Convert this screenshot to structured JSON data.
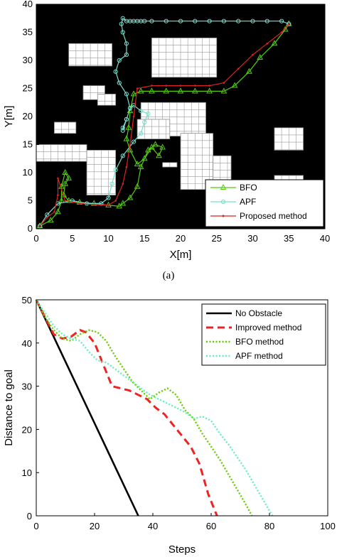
{
  "caption_a": "(a)",
  "chart_data": [
    {
      "type": "scatter",
      "title": "",
      "xlabel": "X[m]",
      "ylabel": "Y[m]",
      "xlim": [
        0,
        40
      ],
      "ylim": [
        0,
        40
      ],
      "xticks": [
        0,
        5,
        10,
        15,
        20,
        25,
        30,
        35,
        40
      ],
      "yticks": [
        0,
        5,
        10,
        15,
        20,
        25,
        30,
        35,
        40
      ],
      "background": "#000000",
      "obstacles": [
        {
          "x0": 4.5,
          "y0": 29,
          "x1": 10.5,
          "y1": 33
        },
        {
          "x0": 16,
          "y0": 27,
          "x1": 25,
          "y1": 34
        },
        {
          "x0": 6.5,
          "y0": 23,
          "x1": 9.5,
          "y1": 25.5
        },
        {
          "x0": 8.5,
          "y0": 22,
          "x1": 11,
          "y1": 24
        },
        {
          "x0": 14.5,
          "y0": 16.5,
          "x1": 23.5,
          "y1": 22.5
        },
        {
          "x0": 2.5,
          "y0": 17,
          "x1": 5.5,
          "y1": 19
        },
        {
          "x0": 0,
          "y0": 12,
          "x1": 7,
          "y1": 15
        },
        {
          "x0": 7,
          "y0": 6,
          "x1": 11,
          "y1": 14
        },
        {
          "x0": 14,
          "y0": 16,
          "x1": 18.5,
          "y1": 19.5
        },
        {
          "x0": 20,
          "y0": 7,
          "x1": 24.5,
          "y1": 17
        },
        {
          "x0": 17.5,
          "y0": 11,
          "x1": 19.5,
          "y1": 11.8
        },
        {
          "x0": 24.5,
          "y0": 7,
          "x1": 27,
          "y1": 13
        },
        {
          "x0": 33,
          "y0": 14,
          "x1": 37,
          "y1": 18
        },
        {
          "x0": 33,
          "y0": 8,
          "x1": 37,
          "y1": 9.5
        }
      ],
      "series": [
        {
          "name": "BFO",
          "color": "#55cc11",
          "marker": "triangle",
          "x": [
            0.5,
            2,
            3,
            3.5,
            3.5,
            4,
            4.5,
            4,
            3.8,
            4.5,
            6,
            8,
            10,
            11.5,
            12,
            13,
            14,
            14.5,
            15.5,
            16.5,
            17.5,
            17,
            16,
            15,
            14,
            13,
            12.5,
            12.8,
            13,
            13.5,
            14.5,
            16,
            18,
            20,
            22,
            24,
            26,
            27.5,
            29.5,
            31,
            33,
            34.5,
            35
          ],
          "y": [
            0.5,
            1.5,
            3,
            5,
            7.5,
            10,
            9,
            8,
            6,
            5,
            4.7,
            4.5,
            4.2,
            4,
            4.5,
            5.5,
            7.5,
            11,
            14,
            15,
            14.5,
            13,
            14.5,
            12.5,
            11.5,
            14,
            16,
            18,
            21,
            24,
            24.5,
            24.5,
            24.5,
            24.5,
            24.5,
            24.5,
            24.5,
            25.5,
            28,
            30.5,
            33,
            35.5,
            36.5
          ]
        },
        {
          "name": "APF",
          "color": "#77ddcc",
          "marker": "circle",
          "x": [
            0.5,
            1.5,
            3,
            5,
            7,
            9,
            10,
            10.5,
            11,
            12,
            13.5,
            14.5,
            15,
            15.5,
            14.5,
            13.5,
            13,
            12.5,
            12,
            12,
            12.5,
            13,
            12.5,
            11.5,
            11,
            11.5,
            12.5,
            12.5,
            12,
            11.8,
            12,
            12.5,
            13,
            13.5,
            14,
            14.5,
            15,
            16,
            18,
            20,
            22,
            24,
            26,
            28,
            30,
            32,
            34,
            35
          ],
          "y": [
            0.5,
            2.5,
            4.5,
            5,
            4.5,
            4.5,
            5.5,
            8,
            10.5,
            13,
            15.5,
            17,
            19,
            20.5,
            21,
            22,
            21.5,
            19.5,
            18,
            17.5,
            19.5,
            21.5,
            24,
            26,
            28,
            30,
            31,
            33,
            35,
            36.5,
            37.5,
            37,
            37,
            37,
            37,
            37,
            37,
            37,
            37,
            37,
            37,
            37,
            37,
            37,
            37,
            37,
            37,
            36.5
          ]
        },
        {
          "name": "Proposed method",
          "color": "#dd2222",
          "marker": "dot",
          "x": [
            0.5,
            1.5,
            2.5,
            3,
            3,
            4,
            5,
            6,
            8,
            10,
            11,
            12,
            12.5,
            13,
            13.5,
            14,
            16,
            18,
            20,
            22,
            24,
            26,
            28,
            30,
            32,
            34,
            35
          ],
          "y": [
            0.5,
            2,
            3,
            6,
            9,
            5,
            4.8,
            4.5,
            4.3,
            4.2,
            5,
            8,
            11,
            15,
            20,
            25,
            25.5,
            25.5,
            25.5,
            25.5,
            25.5,
            26,
            28.5,
            31,
            33,
            35,
            36.5
          ]
        }
      ],
      "legend": {
        "placement": "bottom-right",
        "entries": [
          "BFO",
          "APF",
          "Proposed method"
        ]
      }
    },
    {
      "type": "line",
      "title": "",
      "xlabel": "Steps",
      "ylabel": "Distance to goal",
      "xlim": [
        0,
        100
      ],
      "ylim": [
        0,
        50
      ],
      "xticks": [
        0,
        20,
        40,
        60,
        80,
        100
      ],
      "yticks": [
        0,
        10,
        20,
        30,
        40,
        50
      ],
      "series": [
        {
          "name": "No Obstacle",
          "color": "#000000",
          "style": "solid",
          "x": [
            0,
            35
          ],
          "y": [
            50,
            0
          ]
        },
        {
          "name": "Improved method",
          "color": "#ee2222",
          "style": "dash",
          "x": [
            0,
            3,
            6,
            9,
            12,
            15,
            17,
            20,
            23,
            26,
            29,
            32,
            35,
            38,
            41,
            44,
            47,
            50,
            53,
            56,
            59,
            62
          ],
          "y": [
            50,
            46,
            42,
            41,
            41.5,
            43,
            42.5,
            40,
            35,
            30,
            29.5,
            29,
            28,
            27,
            25,
            23.5,
            21,
            18.5,
            16,
            12,
            5,
            0
          ]
        },
        {
          "name": "BFO method",
          "color": "#66cc00",
          "style": "dot",
          "x": [
            0,
            3,
            6,
            9,
            12,
            15,
            18,
            21,
            24,
            27,
            30,
            33,
            36,
            39,
            42,
            45,
            48,
            51,
            54,
            57,
            60,
            63,
            66,
            69,
            72,
            74
          ],
          "y": [
            50,
            46,
            43,
            41,
            40.5,
            42,
            43,
            42.5,
            40.5,
            37,
            34,
            31,
            29,
            27,
            28.5,
            29.5,
            28,
            24.5,
            22.5,
            19,
            16,
            13,
            9.5,
            6,
            2.5,
            0
          ]
        },
        {
          "name": "APF method",
          "color": "#66eebb",
          "style": "dot",
          "x": [
            0,
            3,
            6,
            9,
            12,
            15,
            18,
            21,
            24,
            27,
            30,
            33,
            36,
            39,
            42,
            45,
            48,
            51,
            54,
            57,
            60,
            63,
            66,
            69,
            72,
            75,
            78,
            81
          ],
          "y": [
            50,
            47,
            44,
            42,
            41,
            40.5,
            38,
            36,
            35.5,
            34,
            32.5,
            31,
            29.5,
            28,
            27,
            26,
            25,
            24,
            22.5,
            23,
            22,
            19,
            16.5,
            13.5,
            10.5,
            7,
            3.5,
            0
          ]
        }
      ],
      "legend": {
        "placement": "top-right",
        "entries": [
          "No Obstacle",
          "Improved method",
          "BFO method",
          "APF method"
        ]
      }
    }
  ]
}
